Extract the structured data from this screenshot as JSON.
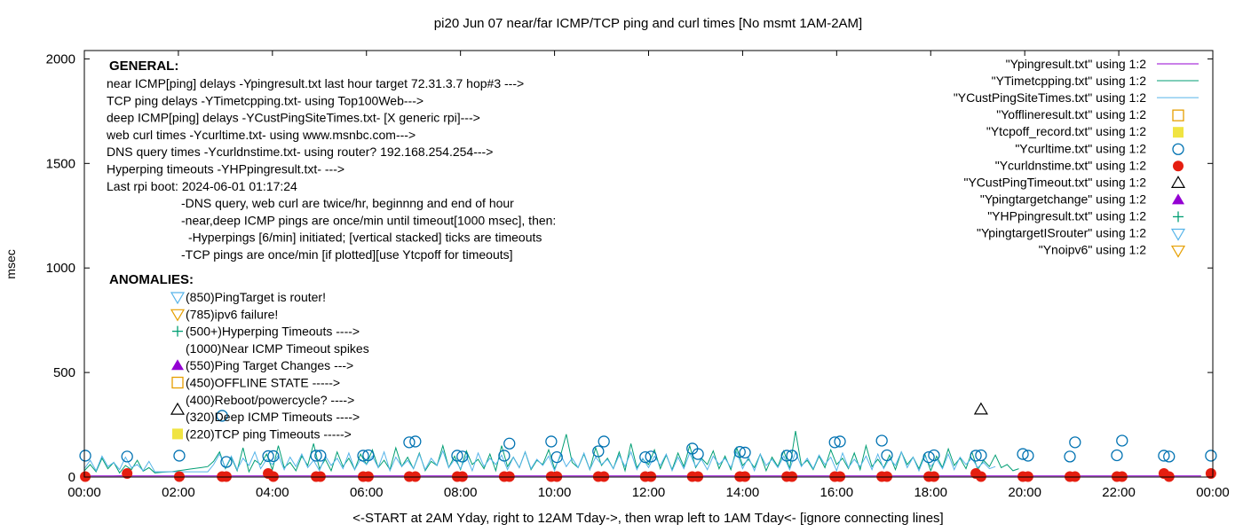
{
  "chart_data": {
    "type": "line",
    "title": "pi20 Jun 07  near/far ICMP/TCP ping and curl times [No msmt 1AM-2AM]",
    "xlabel": "<-START at 2AM Yday, right to 12AM Tday->, then wrap left to 1AM Tday<- [ignore connecting lines]",
    "ylabel": "msec",
    "xlim": [
      0,
      24
    ],
    "ylim": [
      0,
      2040
    ],
    "xticks": [
      "00:00",
      "02:00",
      "04:00",
      "06:00",
      "08:00",
      "10:00",
      "12:00",
      "14:00",
      "16:00",
      "18:00",
      "20:00",
      "22:00",
      "00:00"
    ],
    "yticks": [
      0,
      500,
      1000,
      1500,
      2000
    ],
    "legend_position": "top-right",
    "colors": {
      "purple": "#9400d3",
      "green": "#009e73",
      "skyblue": "#56b4e9",
      "orange": "#e69f00",
      "yellow": "#f0e442",
      "blue": "#0072b2",
      "red": "#e51e10",
      "black": "#000000"
    },
    "legend": [
      {
        "label": "\"Ypingresult.txt\" using 1:2",
        "marker": "line",
        "color": "#9400d3"
      },
      {
        "label": "\"YTimetcpping.txt\" using 1:2",
        "marker": "line",
        "color": "#009e73"
      },
      {
        "label": "\"YCustPingSiteTimes.txt\" using 1:2",
        "marker": "line",
        "color": "#56b4e9"
      },
      {
        "label": "\"Yofflineresult.txt\" using 1:2",
        "marker": "square-open",
        "color": "#e69f00"
      },
      {
        "label": "\"Ytcpoff_record.txt\" using 1:2",
        "marker": "square-filled",
        "color": "#f0e442"
      },
      {
        "label": "\"Ycurltime.txt\" using 1:2",
        "marker": "circle-open",
        "color": "#0072b2"
      },
      {
        "label": "\"Ycurldnstime.txt\" using 1:2",
        "marker": "circle-filled",
        "color": "#e51e10"
      },
      {
        "label": "\"YCustPingTimeout.txt\" using 1:2",
        "marker": "triangle-open",
        "color": "#000000"
      },
      {
        "label": "\"Ypingtargetchange\" using 1:2",
        "marker": "triangle-filled",
        "color": "#9400d3"
      },
      {
        "label": "\"YHPpingresult.txt\" using 1:2",
        "marker": "plus",
        "color": "#009e73"
      },
      {
        "label": "\"YpingtargetISrouter\" using 1:2",
        "marker": "triangledown-open",
        "color": "#56b4e9"
      },
      {
        "label": "\"Ynoipv6\" using 1:2",
        "marker": "triangledown-open",
        "color": "#e69f00"
      }
    ],
    "general": {
      "heading": "GENERAL:",
      "lines": [
        "near ICMP[ping] delays -Ypingresult.txt last hour target 72.31.3.7 hop#3 --->",
        "TCP ping delays -YTimetcpping.txt- using Top100Web--->",
        "deep ICMP[ping] delays -YCustPingSiteTimes.txt- [X generic rpi]--->",
        "web curl times -Ycurltime.txt- using www.msnbc.com--->",
        "DNS query times -Ycurldnstime.txt- using router? 192.168.254.254--->",
        "Hyperping timeouts -YHPpingresult.txt- --->",
        "Last rpi boot: 2024-06-01 01:17:24"
      ],
      "notes": [
        "-DNS query, web curl are twice/hr, beginnng and end of hour",
        "-near,deep ICMP pings are once/min until timeout[1000 msec], then:",
        "-Hyperpings [6/min] initiated; [vertical stacked] ticks are timeouts",
        "-TCP pings are once/min [if plotted][use Ytcpoff for timeouts]"
      ]
    },
    "anomalies": {
      "heading": "ANOMALIES:",
      "items": [
        {
          "text": "(850)PingTarget is router!",
          "marker": "triangledown-open",
          "color": "#56b4e9"
        },
        {
          "text": "(785)ipv6 failure!",
          "marker": "triangledown-open",
          "color": "#e69f00"
        },
        {
          "text": "(500+)Hyperping Timeouts ---->",
          "marker": "plus",
          "color": "#009e73"
        },
        {
          "text": "(1000)Near ICMP Timeout spikes",
          "marker": "none",
          "color": ""
        },
        {
          "text": "(550)Ping Target Changes --->",
          "marker": "triangle-filled",
          "color": "#9400d3"
        },
        {
          "text": "(450)OFFLINE STATE ----->",
          "marker": "square-open",
          "color": "#e69f00"
        },
        {
          "text": "(400)Reboot/powercycle? ---->",
          "marker": "none",
          "color": ""
        },
        {
          "text": "(320)Deep ICMP Timeouts ---->",
          "marker": "triangle-open",
          "color": "#000000"
        },
        {
          "text": "(220)TCP ping Timeouts ----->",
          "marker": "square-filled",
          "color": "#f0e442"
        }
      ]
    },
    "series": {
      "Ypingresult": {
        "x_start": 0,
        "x_step": 0.25,
        "values": [
          5,
          5,
          5,
          6,
          5,
          5,
          5,
          5,
          5,
          5,
          5,
          5,
          5,
          5,
          5,
          5,
          5,
          5,
          5,
          5,
          5,
          5,
          5,
          5,
          5,
          5,
          5,
          5,
          5,
          5,
          5,
          5,
          5,
          5,
          5,
          5,
          5,
          5,
          5,
          5,
          5,
          5,
          5,
          5,
          5,
          5,
          5,
          5,
          5,
          5,
          5,
          5,
          5,
          5,
          5,
          5,
          5,
          5,
          5,
          5,
          5,
          5,
          5,
          5,
          5,
          5,
          5,
          5,
          5,
          5,
          5,
          5,
          5,
          5,
          5,
          5,
          5,
          5,
          5,
          5,
          5,
          5,
          5,
          5,
          5,
          5,
          5,
          5,
          5,
          5,
          5,
          5,
          5,
          5,
          5,
          5
        ]
      },
      "YTimetcpping": {
        "x_start": 0,
        "x_step": 0.125,
        "values": [
          30,
          60,
          25,
          90,
          40,
          70,
          20,
          55,
          35,
          80,
          28,
          45,
          20,
          22,
          24,
          26,
          30,
          34,
          38,
          42,
          46,
          50,
          75,
          120,
          40,
          95,
          30,
          140,
          25,
          80,
          60,
          110,
          35,
          150,
          45,
          70,
          30,
          100,
          55,
          160,
          40,
          85,
          30,
          120,
          50,
          90,
          35,
          110,
          60,
          130,
          45,
          80,
          35,
          140,
          50,
          95,
          40,
          115,
          30,
          75,
          55,
          150,
          45,
          100,
          35,
          125,
          60,
          85,
          40,
          110,
          30,
          150,
          50,
          95,
          45,
          120,
          35,
          80,
          60,
          130,
          40,
          100,
          205,
          70,
          45,
          110,
          35,
          140,
          55,
          90,
          40,
          120,
          30,
          160,
          45,
          85,
          60,
          130,
          40,
          105,
          35,
          115,
          50,
          150,
          45,
          90,
          60,
          125,
          40,
          100,
          35,
          140,
          55,
          85,
          45,
          110,
          30,
          95,
          50,
          125,
          40,
          220,
          55,
          80,
          35,
          100,
          45,
          130,
          60,
          90,
          40,
          115,
          35,
          150,
          50,
          85,
          45,
          105,
          35,
          120,
          60,
          95,
          40,
          110,
          30,
          100,
          45,
          135,
          55,
          90,
          40,
          120,
          35,
          80,
          50,
          105,
          45,
          60,
          30,
          40
        ]
      },
      "YCustPingSiteTimes": {
        "x_start": 0,
        "x_step": 0.125,
        "values": [
          40,
          80,
          30,
          100,
          50,
          70,
          35,
          95,
          45,
          60,
          30,
          75,
          25,
          25,
          25,
          25,
          25,
          25,
          25,
          25,
          25,
          25,
          60,
          110,
          45,
          100,
          35,
          90,
          55,
          120,
          40,
          85,
          60,
          105,
          35,
          95,
          50,
          110,
          45,
          80,
          30,
          100,
          55,
          90,
          40,
          115,
          35,
          85,
          60,
          100,
          45,
          120,
          30,
          95,
          50,
          80,
          40,
          110,
          35,
          90,
          55,
          125,
          45,
          85,
          40,
          100,
          30,
          115,
          50,
          90,
          60,
          105,
          35,
          95,
          45,
          120,
          40,
          85,
          55,
          100,
          30,
          110,
          50,
          90,
          45,
          115,
          35,
          95,
          60,
          85,
          40,
          105,
          50,
          120,
          35,
          90,
          45,
          100,
          55,
          110,
          30,
          95,
          40,
          115,
          50,
          85,
          35,
          100,
          60,
          90,
          45,
          120,
          40,
          95,
          30,
          110,
          55,
          85,
          45,
          100,
          35,
          120,
          50,
          90,
          40,
          105,
          60,
          95,
          30,
          115,
          45,
          85,
          50,
          100,
          35,
          110,
          40,
          90,
          55,
          120,
          45,
          95,
          30,
          100,
          50,
          85,
          40,
          110,
          35,
          95,
          60,
          90,
          45,
          70,
          40,
          50
        ]
      },
      "Ycurltime": {
        "x": [
          0.02,
          0.91,
          2.02,
          2.93,
          3.02,
          3.91,
          4.02,
          4.93,
          5.02,
          5.93,
          6.04,
          6.91,
          7.04,
          7.93,
          8.04,
          8.93,
          9.04,
          9.93,
          10.05,
          10.93,
          11.05,
          11.93,
          12.05,
          12.93,
          13.05,
          13.94,
          14.05,
          14.94,
          15.05,
          15.96,
          16.07,
          16.96,
          17.07,
          17.96,
          18.07,
          18.96,
          19.07,
          19.96,
          20.07,
          20.96,
          21.07,
          21.96,
          22.07,
          22.96,
          23.07,
          23.96
        ],
        "y": [
          102,
          98,
          102,
          293,
          72,
          100,
          100,
          102,
          102,
          102,
          104,
          166,
          170,
          102,
          98,
          102,
          160,
          170,
          95,
          123,
          170,
          95,
          98,
          136,
          110,
          120,
          117,
          102,
          102,
          166,
          170,
          174,
          104,
          95,
          104,
          102,
          104,
          110,
          102,
          98,
          166,
          104,
          174,
          102,
          98,
          102
        ]
      },
      "Ycurldnstime": {
        "x": [
          0.02,
          0.91,
          2.02,
          2.93,
          3.02,
          3.91,
          4.02,
          4.93,
          5.02,
          5.93,
          6.04,
          6.91,
          7.04,
          7.93,
          8.04,
          8.93,
          9.04,
          9.93,
          10.05,
          10.93,
          11.05,
          11.93,
          12.05,
          12.93,
          13.05,
          13.94,
          14.05,
          14.94,
          15.05,
          15.96,
          16.07,
          16.96,
          17.07,
          17.96,
          18.07,
          18.96,
          19.07,
          19.96,
          20.07,
          20.96,
          21.07,
          21.96,
          22.07,
          22.96,
          23.07,
          23.96
        ],
        "y": [
          2,
          17,
          2,
          2,
          2,
          17,
          2,
          2,
          2,
          2,
          2,
          2,
          2,
          2,
          2,
          2,
          2,
          2,
          2,
          2,
          2,
          2,
          2,
          2,
          2,
          2,
          2,
          2,
          2,
          2,
          2,
          2,
          2,
          2,
          2,
          17,
          2,
          2,
          2,
          2,
          2,
          2,
          2,
          17,
          2,
          17
        ]
      },
      "YCustPingTimeout": {
        "x": [
          19.07
        ],
        "y": [
          323
        ]
      }
    }
  }
}
